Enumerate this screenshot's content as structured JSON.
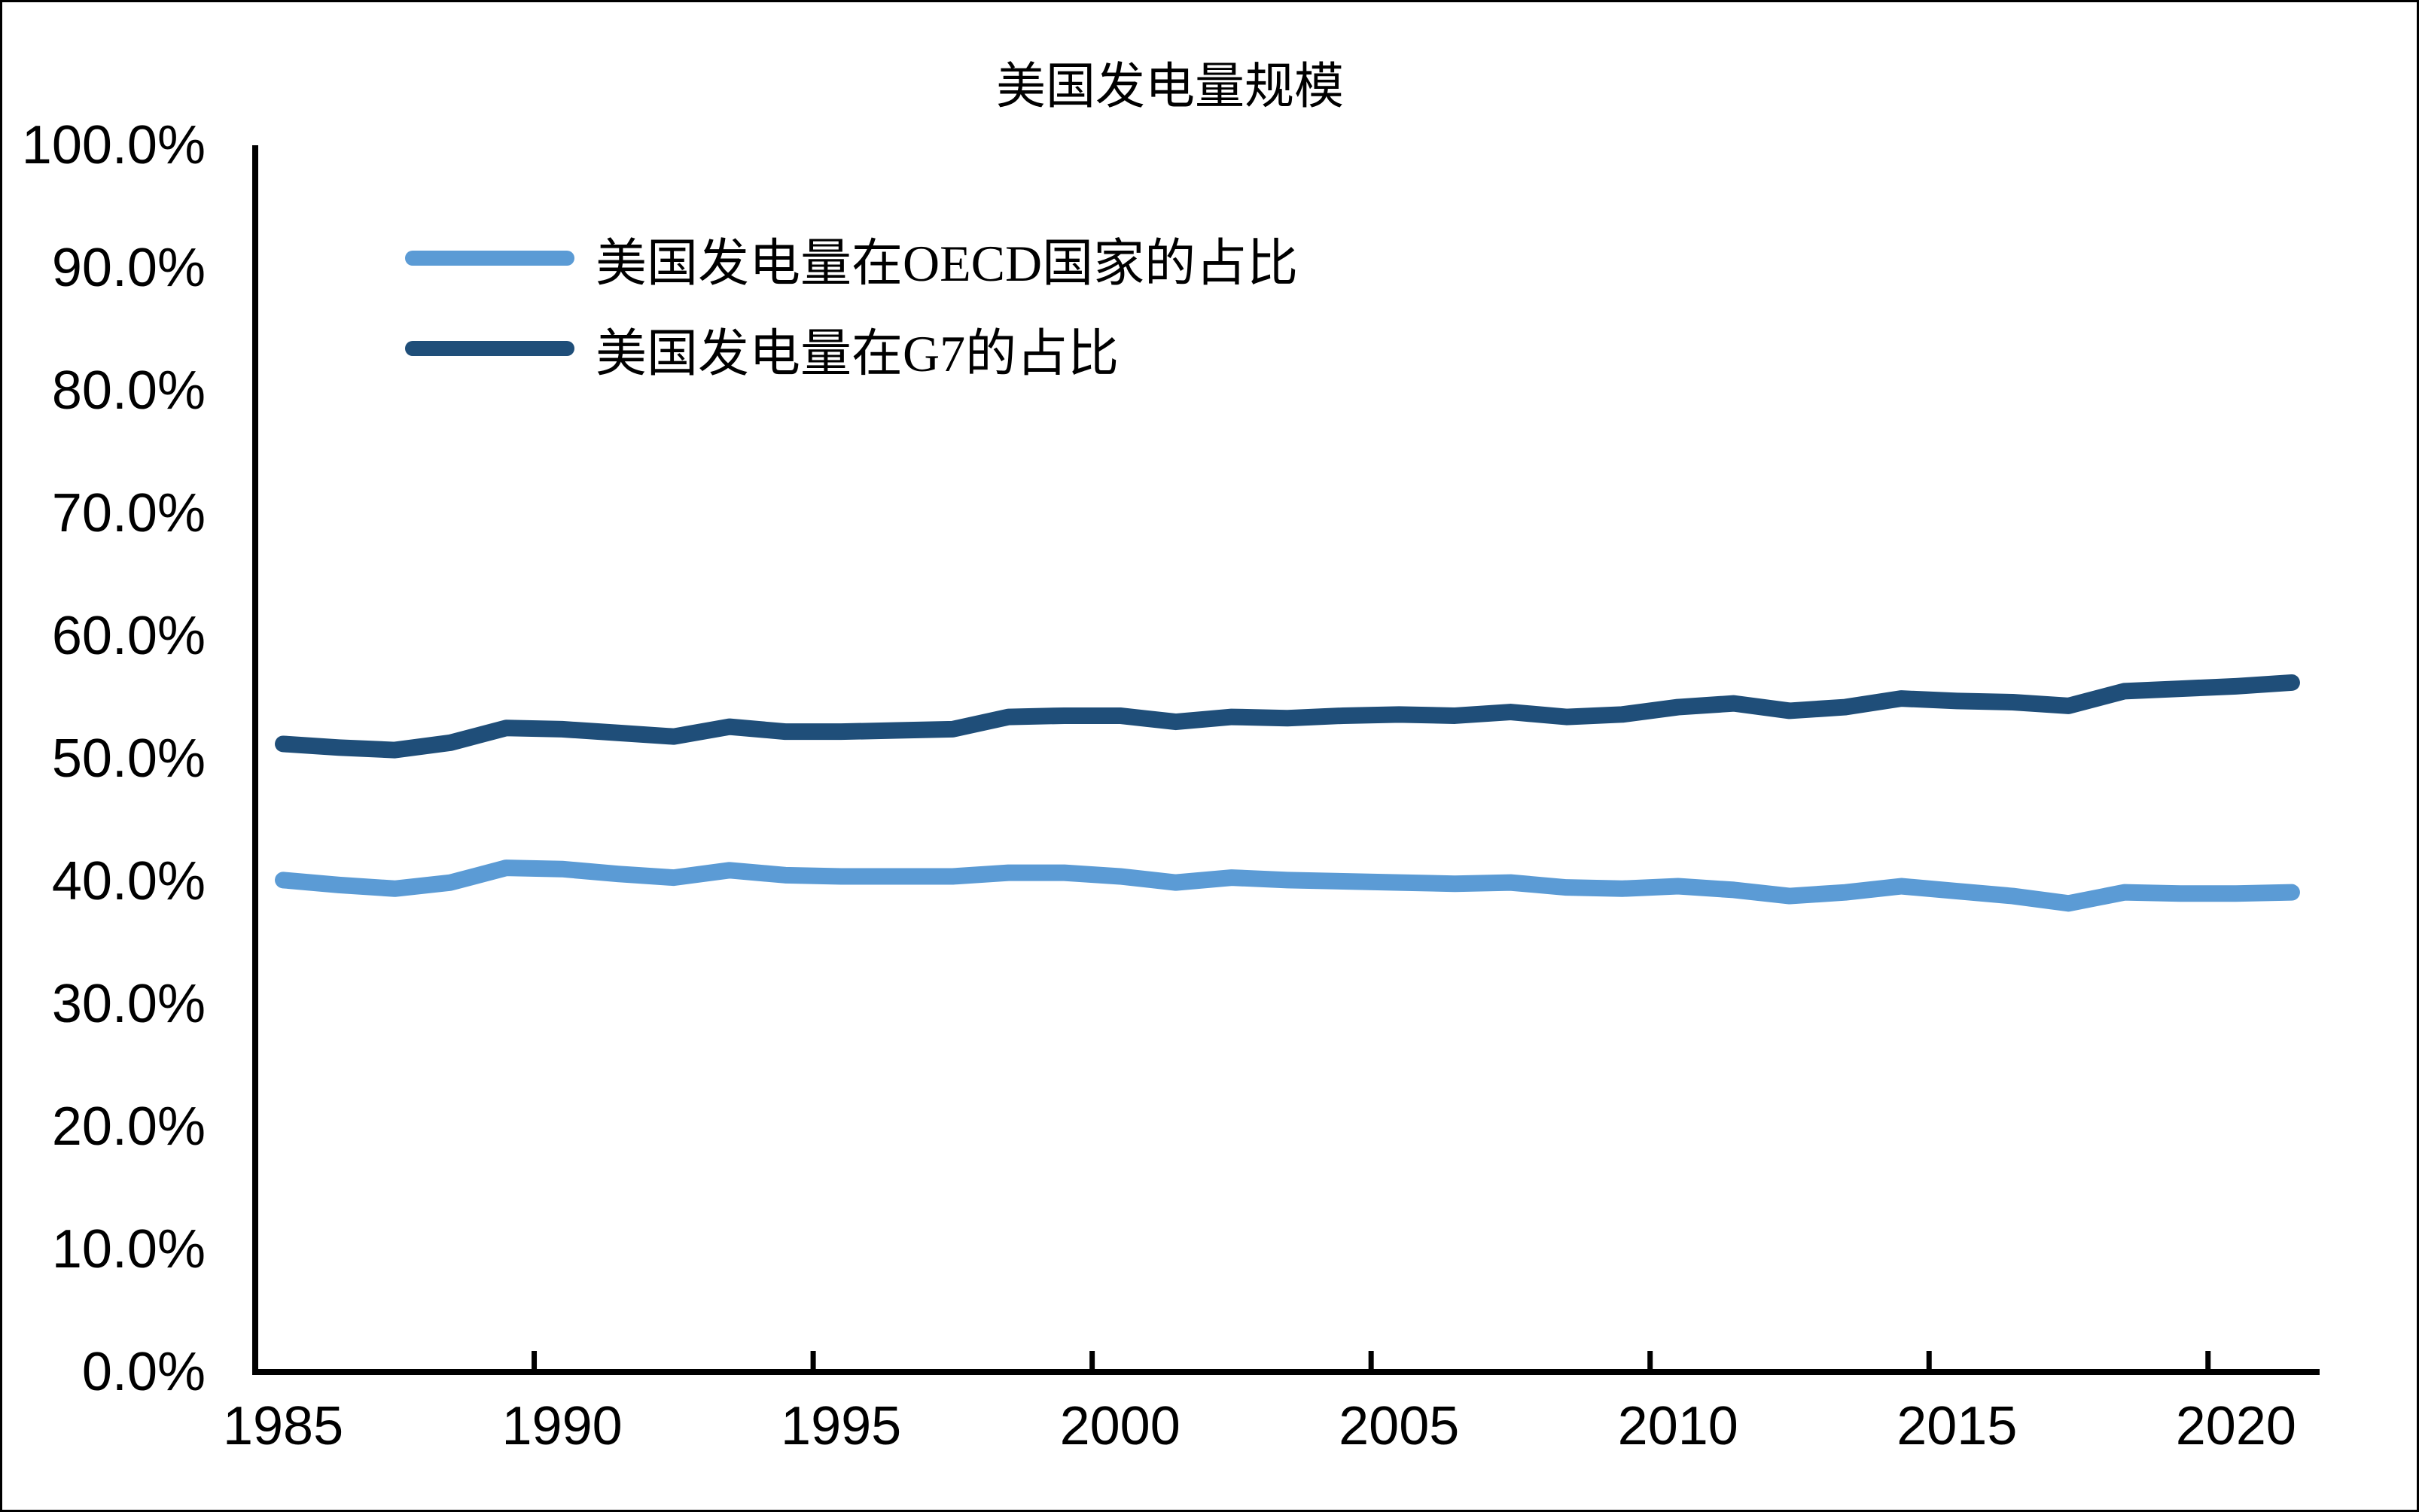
{
  "title": "美国发电量规模",
  "legend": {
    "items": [
      {
        "id": "oecd",
        "label": "美国发电量在OECD国家的占比",
        "color": "#5B9BD5"
      },
      {
        "id": "g7",
        "label": "美国发电量在G7的占比",
        "color": "#1F4E79"
      }
    ]
  },
  "axes": {
    "axis_color": "#000000",
    "y_unit": "percent",
    "y_tick_labels": [
      "0.0%",
      "10.0%",
      "20.0%",
      "30.0%",
      "40.0%",
      "50.0%",
      "60.0%",
      "70.0%",
      "80.0%",
      "90.0%",
      "100.0%"
    ],
    "x_tick_labels": [
      "1985",
      "1990",
      "1995",
      "2000",
      "2005",
      "2010",
      "2015",
      "2020"
    ]
  },
  "chart_data": {
    "type": "line",
    "title": "美国发电量规模",
    "xlabel": "",
    "ylabel": "",
    "ylim": [
      0,
      100
    ],
    "y_tick_step": 10,
    "grid": false,
    "legend_position": "top-left",
    "x": [
      1985,
      1986,
      1987,
      1988,
      1989,
      1990,
      1991,
      1992,
      1993,
      1994,
      1995,
      1996,
      1997,
      1998,
      1999,
      2000,
      2001,
      2002,
      2003,
      2004,
      2005,
      2006,
      2007,
      2008,
      2009,
      2010,
      2011,
      2012,
      2013,
      2014,
      2015,
      2016,
      2017,
      2018,
      2019,
      2020,
      2021
    ],
    "series": [
      {
        "id": "oecd",
        "name": "美国发电量在OECD国家的占比",
        "color": "#5B9BD5",
        "values": [
          40.1,
          39.7,
          39.4,
          39.9,
          41.1,
          41.0,
          40.6,
          40.3,
          40.9,
          40.5,
          40.4,
          40.4,
          40.4,
          40.7,
          40.7,
          40.4,
          39.9,
          40.3,
          40.1,
          40.0,
          39.9,
          39.8,
          39.9,
          39.5,
          39.4,
          39.6,
          39.3,
          38.8,
          39.1,
          39.6,
          39.2,
          38.8,
          38.2,
          39.1,
          39.0,
          39.0,
          39.1
        ]
      },
      {
        "id": "g7",
        "name": "美国发电量在G7的占比",
        "color": "#1F4E79",
        "values": [
          51.2,
          50.9,
          50.7,
          51.3,
          52.5,
          52.4,
          52.1,
          51.8,
          52.6,
          52.2,
          52.2,
          52.3,
          52.4,
          53.4,
          53.5,
          53.5,
          53.0,
          53.4,
          53.3,
          53.5,
          53.6,
          53.5,
          53.8,
          53.4,
          53.6,
          54.2,
          54.5,
          53.9,
          54.2,
          54.9,
          54.7,
          54.6,
          54.3,
          55.5,
          55.7,
          55.9,
          56.2
        ]
      }
    ]
  }
}
